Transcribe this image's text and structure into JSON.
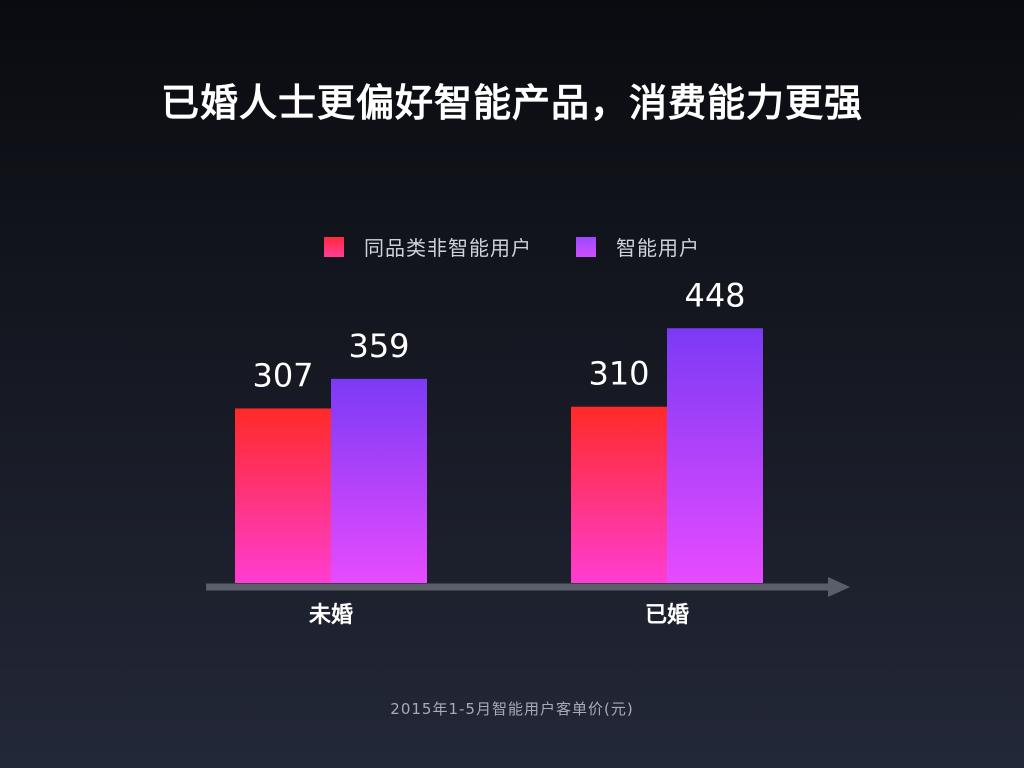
{
  "title": "已婚人士更偏好智能产品，消费能力更强",
  "footnote": "2015年1-5月智能用户客单价(元)",
  "colors": {
    "series0_top": "#ff2a26",
    "series0_bottom": "#ff3dd2",
    "series1_top": "#7b3af5",
    "series1_bottom": "#e74bff",
    "axis": "#5a5e68"
  },
  "chart_data": {
    "type": "bar",
    "categories": [
      "未婚",
      "已婚"
    ],
    "series": [
      {
        "name": "同品类非智能用户",
        "values": [
          307,
          310
        ]
      },
      {
        "name": "智能用户",
        "values": [
          359,
          448
        ]
      }
    ],
    "ylim": [
      0,
      510
    ],
    "grid": false,
    "legend": "top-center",
    "data_labels": true
  }
}
